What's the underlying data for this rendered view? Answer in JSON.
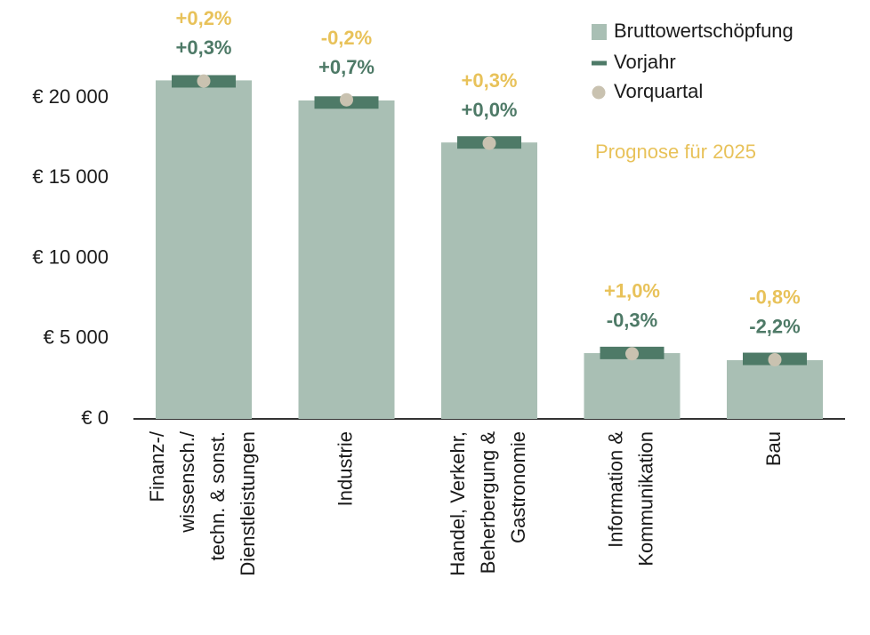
{
  "chart_data": {
    "type": "bar",
    "categories": [
      [
        "Finanz-/",
        "wissensch./",
        "techn. & sonst.",
        "Dienstleistungen"
      ],
      [
        "Industrie"
      ],
      [
        "Handel, Verkehr,",
        "Beherbergung &",
        "Gastronomie"
      ],
      [
        "Information &",
        "Kommunikation"
      ],
      [
        "Bau"
      ]
    ],
    "series": [
      {
        "name": "Bruttowertschöpfung",
        "style": "bar",
        "color": "#a9bfb4",
        "values": [
          21100,
          19850,
          17230,
          4100,
          3660
        ]
      },
      {
        "name": "Vorjahr",
        "style": "line",
        "color": "#4e7a67",
        "values": [
          21040,
          19720,
          17230,
          4110,
          3740
        ]
      },
      {
        "name": "Vorquartal",
        "style": "dot",
        "color": "#c9c2b0",
        "values": [
          21060,
          19890,
          17180,
          4060,
          3690
        ]
      }
    ],
    "quarter_change_labels": {
      "color": "#e8c25a",
      "labels": [
        "+0,2%",
        "-0,2%",
        "+0,3%",
        "+1,0%",
        "-0,8%"
      ]
    },
    "year_change_labels": {
      "color": "#4e7a67",
      "labels": [
        "+0,3%",
        "+0,7%",
        "+0,0%",
        "-0,3%",
        "-2,2%"
      ]
    },
    "annotation": {
      "text": "Prognose für 2025",
      "color": "#e8c25a"
    },
    "ylim": [
      0,
      26000
    ],
    "yticks": [
      {
        "value": 0,
        "label": "€ 0"
      },
      {
        "value": 5000,
        "label": "€ 5 000"
      },
      {
        "value": 10000,
        "label": "€ 10 000"
      },
      {
        "value": 15000,
        "label": "€ 15 000"
      },
      {
        "value": 20000,
        "label": "€ 20 000"
      }
    ],
    "legend": "top-right"
  }
}
